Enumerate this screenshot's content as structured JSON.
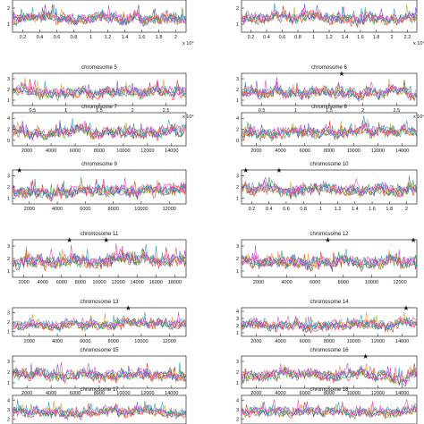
{
  "figure": {
    "series_colors": [
      "#e8262a",
      "#2a9a3a",
      "#7a3fd0",
      "#e09a1a",
      "#1aa0c0",
      "#e040c0",
      "#3050e0",
      "#555555"
    ]
  },
  "chart_data": [
    {
      "type": "line",
      "title": "",
      "xticks": [
        "0.2",
        "0.4",
        "0.6",
        "0.8",
        "1",
        "1.2",
        "1.4",
        "1.6",
        "1.8",
        "2"
      ],
      "yticks": [
        "1",
        "2"
      ],
      "x_exponent": "x 10⁴",
      "ylim": [
        0.6,
        2.3
      ],
      "markers": [],
      "peaks": []
    },
    {
      "type": "line",
      "title": "",
      "xticks": [
        "0.2",
        "0.4",
        "0.6",
        "0.8",
        "1",
        "1.2",
        "1.4",
        "1.6",
        "1.8",
        "2",
        "2.2"
      ],
      "yticks": [
        "1",
        "2"
      ],
      "x_exponent": "x 10⁴",
      "ylim": [
        0.6,
        2.3
      ],
      "markers": [],
      "peaks": []
    },
    {
      "type": "line",
      "title": "chromosome 5",
      "xticks": [
        "0.5",
        "1",
        "1.5",
        "2",
        "2.5"
      ],
      "yticks": [
        "1",
        "2",
        "3"
      ],
      "x_exponent": "x 10⁴",
      "ylim": [
        0.5,
        3
      ],
      "markers": [],
      "peaks": []
    },
    {
      "type": "line",
      "title": "chromosome 6",
      "xticks": [
        "0.5",
        "1",
        "1.5",
        "2",
        "2.5"
      ],
      "yticks": [
        "1",
        "2",
        "3"
      ],
      "x_exponent": "x 10⁴",
      "ylim": [
        0.5,
        3
      ],
      "markers": [
        1.5
      ],
      "peaks": []
    },
    {
      "type": "line",
      "title": "chromosome 7",
      "xticks": [
        "2000",
        "4000",
        "6000",
        "8000",
        "10000",
        "12000",
        "14000"
      ],
      "yticks": [
        "0",
        "2",
        "4"
      ],
      "x_exponent": "",
      "ylim": [
        0,
        4.2
      ],
      "markers": [],
      "peaks": []
    },
    {
      "type": "line",
      "title": "chromosome 8",
      "xticks": [
        "2000",
        "4000",
        "6000",
        "8000",
        "10000",
        "12000",
        "14000"
      ],
      "yticks": [
        "0",
        "2",
        "4"
      ],
      "x_exponent": "",
      "ylim": [
        0,
        4.2
      ],
      "markers": [],
      "peaks": []
    },
    {
      "type": "line",
      "title": "chromosome 9",
      "xticks": [
        "2000",
        "4000",
        "6000",
        "8000",
        "10000",
        "12000"
      ],
      "yticks": [
        "1",
        "2",
        "3"
      ],
      "x_exponent": "",
      "ylim": [
        0.5,
        3
      ],
      "markers": [
        500
      ],
      "peaks": []
    },
    {
      "type": "line",
      "title": "chromosome 10",
      "xticks": [
        "0.2",
        "0.4",
        "0.6",
        "0.8",
        "1",
        "1.2",
        "1.4",
        "1.6",
        "1.8",
        "2"
      ],
      "yticks": [
        "1",
        "2",
        "3"
      ],
      "x_exponent": "",
      "ylim": [
        0.5,
        3
      ],
      "markers": [
        0.05,
        0.45
      ],
      "peaks": []
    },
    {
      "type": "line",
      "title": "chromosome 11",
      "xticks": [
        "2000",
        "4000",
        "6000",
        "8000",
        "10000",
        "12000",
        "14000",
        "16000",
        "18000"
      ],
      "yticks": [
        "1",
        "2",
        "3"
      ],
      "x_exponent": "",
      "ylim": [
        0.5,
        3.2
      ],
      "markers": [
        6200,
        10200
      ],
      "peaks": []
    },
    {
      "type": "line",
      "title": "chromosome 12",
      "xticks": [
        "2000",
        "4000",
        "6000",
        "8000",
        "10000",
        "12000"
      ],
      "yticks": [
        "1",
        "2",
        "3"
      ],
      "x_exponent": "",
      "ylim": [
        0.5,
        3.2
      ],
      "markers": [
        6200,
        12700
      ],
      "peaks": []
    },
    {
      "type": "line",
      "title": "chromosome 13",
      "xticks": [
        "2000",
        "4000",
        "6000",
        "8000",
        "10000",
        "12000"
      ],
      "yticks": [
        "1",
        "2",
        "3"
      ],
      "x_exponent": "",
      "ylim": [
        0.5,
        3.2
      ],
      "markers": [
        8400
      ],
      "peaks": []
    },
    {
      "type": "line",
      "title": "chromosome 14",
      "xticks": [
        "2000",
        "4000",
        "6000",
        "8000",
        "10000",
        "12000",
        "14000"
      ],
      "yticks": [
        "1",
        "2",
        "3",
        "4"
      ],
      "x_exponent": "",
      "ylim": [
        0.5,
        4.2
      ],
      "markers": [
        13800
      ],
      "peaks": []
    },
    {
      "type": "line",
      "title": "chromosome 15",
      "xticks": [
        "2000",
        "4000",
        "6000",
        "8000",
        "10000",
        "12000",
        "14000"
      ],
      "yticks": [
        "1",
        "2",
        "3"
      ],
      "x_exponent": "",
      "ylim": [
        0.5,
        3.2
      ],
      "markers": [],
      "peaks": []
    },
    {
      "type": "line",
      "title": "chromosome 16",
      "xticks": [
        "2000",
        "4000",
        "6000",
        "8000",
        "10000",
        "12000",
        "14000"
      ],
      "yticks": [
        "1",
        "2",
        "3"
      ],
      "x_exponent": "",
      "ylim": [
        0.5,
        3.2
      ],
      "markers": [
        10400
      ],
      "peaks": []
    },
    {
      "type": "line",
      "title": "chromosome 17",
      "xticks": [],
      "yticks": [
        "2",
        "3",
        "4"
      ],
      "x_exponent": "",
      "ylim": [
        1,
        4.4
      ],
      "markers": [],
      "peaks": []
    },
    {
      "type": "line",
      "title": "chromosome 18",
      "xticks": [],
      "yticks": [
        "2",
        "3",
        "4"
      ],
      "x_exponent": "",
      "ylim": [
        1,
        4.4
      ],
      "markers": [],
      "peaks": []
    }
  ]
}
